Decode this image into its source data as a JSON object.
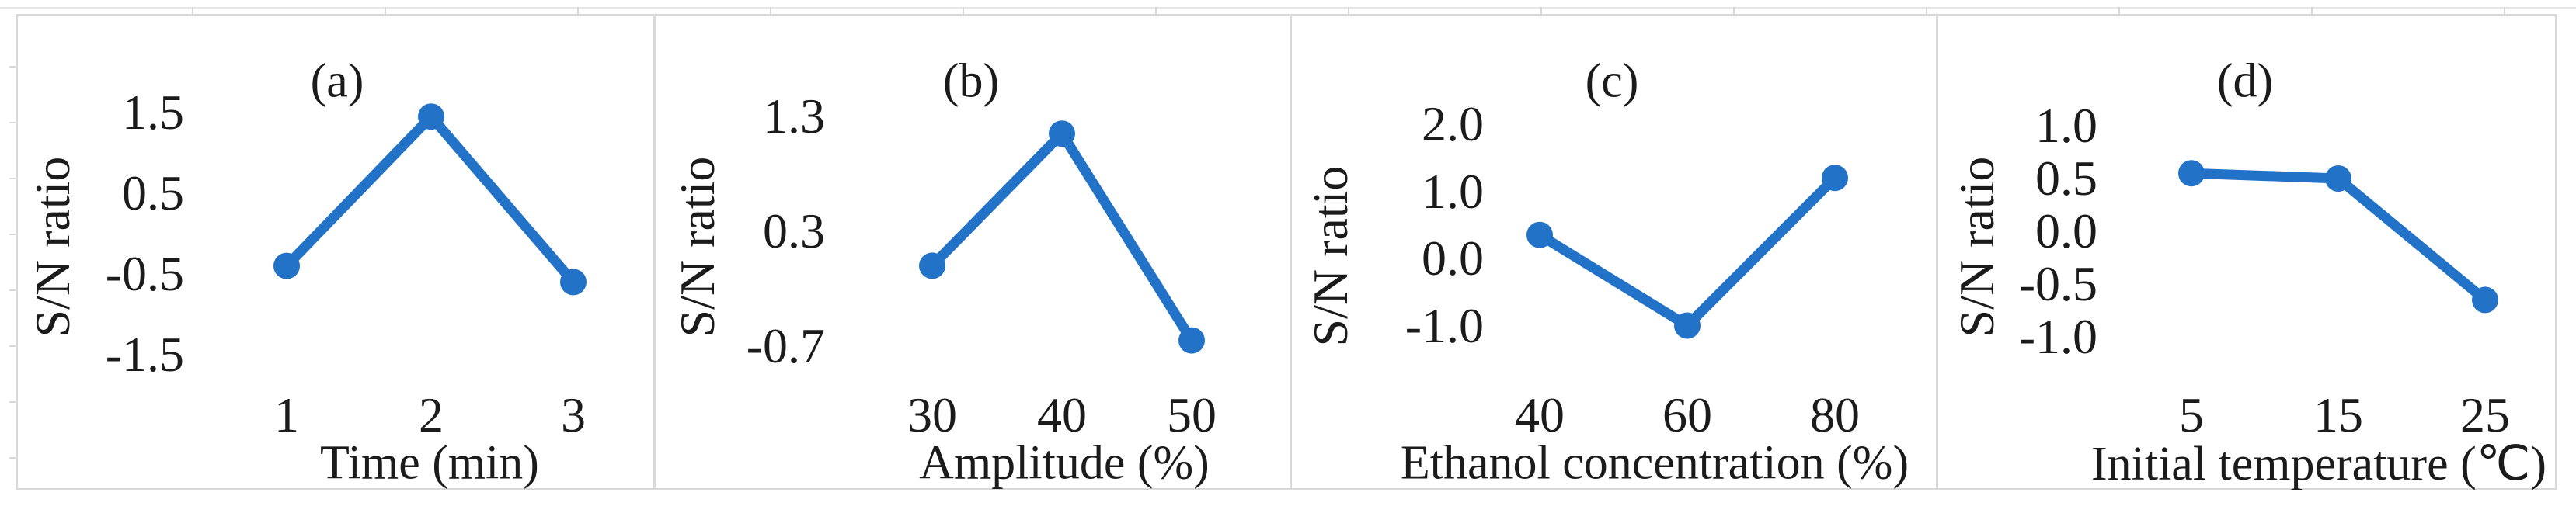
{
  "figure": {
    "accent_color": "#2272C8",
    "frame_color": "#d9d9d9",
    "text_color": "#1b1b1b"
  },
  "chart_data": [
    {
      "type": "line",
      "title": "(a)",
      "xlabel": "Time (min)",
      "ylabel": "S/N ratio",
      "categories": [
        "1",
        "2",
        "3"
      ],
      "x": [
        1,
        2,
        3
      ],
      "values": [
        -0.4,
        1.45,
        -0.6
      ],
      "yticks": [
        1.5,
        0.5,
        -0.5,
        -1.5
      ],
      "ytick_labels": [
        "1.5",
        "0.5",
        "-0.5",
        "-1.5"
      ],
      "ylim": [
        -2.0,
        2.0
      ],
      "grid": false,
      "legend": "none",
      "marker": "circle"
    },
    {
      "type": "line",
      "title": "(b)",
      "xlabel": "Amplitude (%)",
      "ylabel": "S/N ratio",
      "categories": [
        "30",
        "40",
        "50"
      ],
      "x": [
        30,
        40,
        50
      ],
      "values": [
        0.0,
        1.15,
        -0.65
      ],
      "yticks": [
        1.3,
        0.3,
        -0.7
      ],
      "ytick_labels": [
        "1.3",
        "0.3",
        "-0.7"
      ],
      "ylim": [
        -1.2,
        1.8
      ],
      "grid": false,
      "legend": "none",
      "marker": "circle"
    },
    {
      "type": "line",
      "title": "(c)",
      "xlabel": "Ethanol concentration (%)",
      "ylabel": "S/N ratio",
      "categories": [
        "40",
        "60",
        "80"
      ],
      "x": [
        40,
        60,
        80
      ],
      "values": [
        0.35,
        -1.0,
        1.2
      ],
      "yticks": [
        2.0,
        1.0,
        0.0,
        -1.0
      ],
      "ytick_labels": [
        "2.0",
        "1.0",
        "0.0",
        "-1.0"
      ],
      "ylim": [
        -1.6,
        2.6
      ],
      "grid": false,
      "legend": "none",
      "marker": "circle"
    },
    {
      "type": "line",
      "title": "(d)",
      "xlabel": "Initial temperature (℃)",
      "ylabel": "S/N ratio",
      "categories": [
        "5",
        "15",
        "25"
      ],
      "x": [
        5,
        15,
        25
      ],
      "values": [
        0.55,
        0.5,
        -0.65
      ],
      "yticks": [
        1.0,
        0.5,
        0.0,
        -0.5,
        -1.0
      ],
      "ytick_labels": [
        "1.0",
        "0.5",
        "0.0",
        "-0.5",
        "-1.0"
      ],
      "ylim": [
        -1.4,
        1.4
      ],
      "grid": false,
      "legend": "none",
      "marker": "circle"
    }
  ]
}
